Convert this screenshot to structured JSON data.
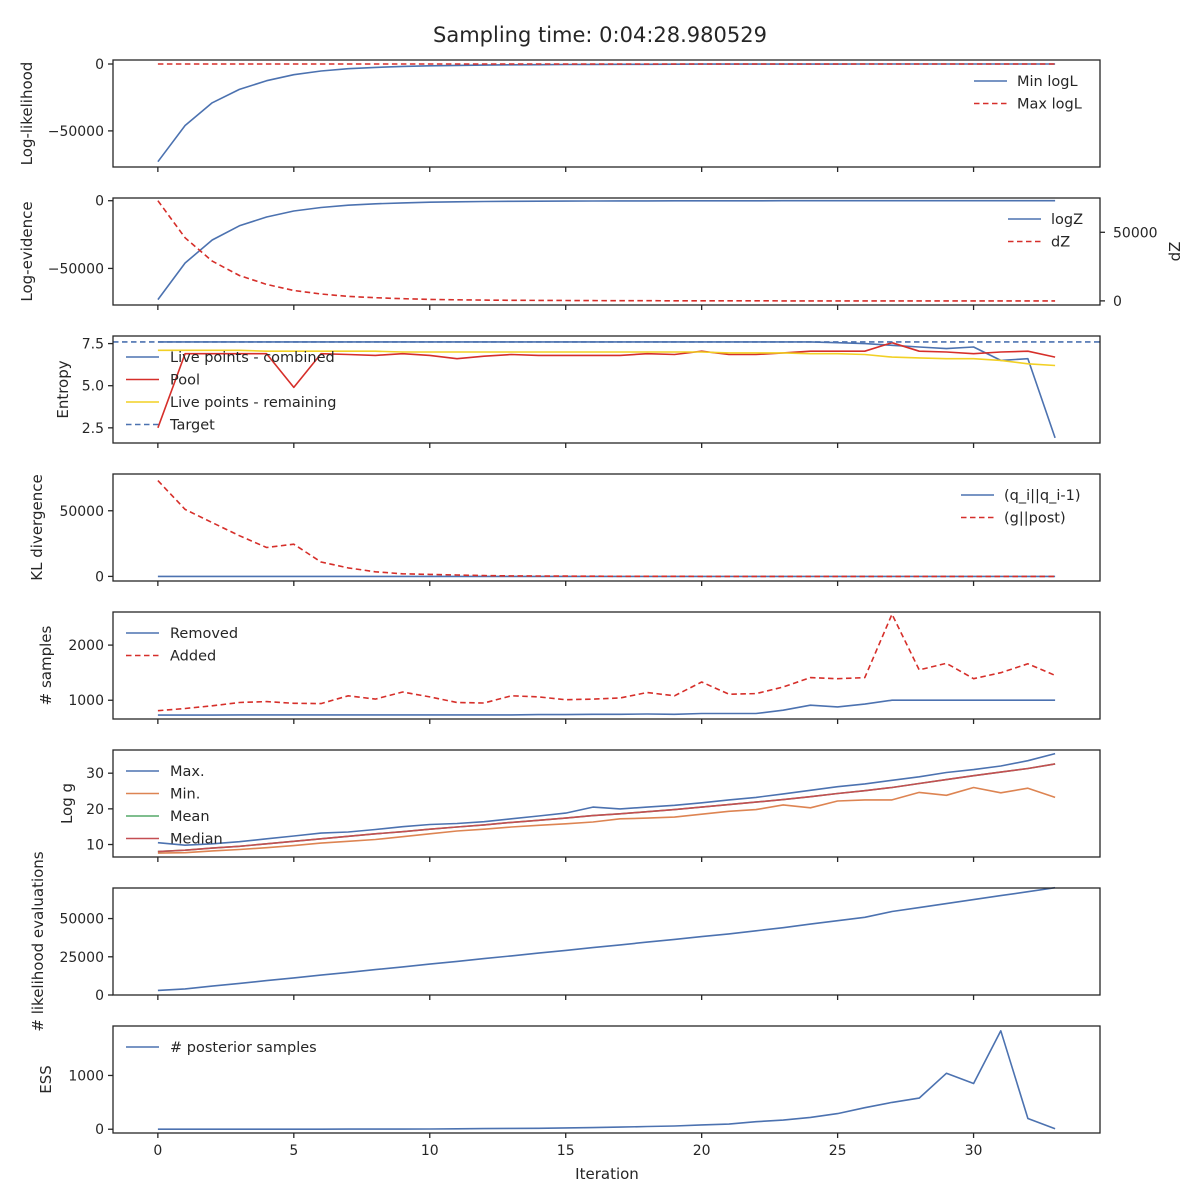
{
  "title": "Sampling time: 0:04:28.980529",
  "xlabel": "Iteration",
  "xticks": [
    0,
    5,
    10,
    15,
    20,
    25,
    30
  ],
  "xlim": [
    -1.65,
    34.65
  ],
  "colors": {
    "blue": "#4c72b0",
    "red": "#d62f2a",
    "orange": "#dd8452",
    "green": "#55a868",
    "brown": "#c44e52",
    "yellow": "#f2d024",
    "text": "#262626"
  },
  "chart_data": [
    {
      "type": "line",
      "ylabel": "Log-likelihood",
      "ylim": [
        -77000,
        3000
      ],
      "yticks": [
        0,
        -50000
      ],
      "yticklabels": [
        "0",
        "−50000"
      ],
      "legend": "top-right",
      "x": [
        0,
        1,
        2,
        3,
        4,
        5,
        6,
        7,
        8,
        9,
        10,
        11,
        12,
        13,
        14,
        15,
        16,
        17,
        18,
        19,
        20,
        21,
        22,
        23,
        24,
        25,
        26,
        27,
        28,
        29,
        30,
        31,
        32,
        33
      ],
      "series": [
        {
          "name": "Min logL",
          "color": "blue",
          "dash": false,
          "values": [
            -73000,
            -46000,
            -29000,
            -19000,
            -12500,
            -8000,
            -5200,
            -3500,
            -2500,
            -1800,
            -1300,
            -1000,
            -800,
            -600,
            -500,
            -400,
            -300,
            -250,
            -200,
            -150,
            -100,
            -80,
            -60,
            -50,
            -40,
            -30,
            -25,
            -20,
            -15,
            -10,
            -8,
            -6,
            -4,
            -3
          ]
        },
        {
          "name": "Max logL",
          "color": "red",
          "dash": true,
          "values": [
            0,
            0,
            0,
            0,
            0,
            0,
            0,
            0,
            0,
            0,
            0,
            0,
            0,
            0,
            0,
            0,
            0,
            0,
            0,
            0,
            0,
            0,
            0,
            0,
            0,
            0,
            0,
            0,
            0,
            0,
            0,
            0,
            0,
            0
          ]
        }
      ]
    },
    {
      "type": "line",
      "ylabel": "Log-evidence",
      "ylabel_right": "dZ",
      "ylim": [
        -77000,
        2000
      ],
      "ylim_right": [
        -3000,
        75000
      ],
      "yticks": [
        0,
        -50000
      ],
      "yticklabels": [
        "0",
        "−50000"
      ],
      "yticks_right": [
        50000,
        0
      ],
      "yticklabels_right": [
        "50000",
        "0"
      ],
      "legend": "top-right",
      "x": [
        0,
        1,
        2,
        3,
        4,
        5,
        6,
        7,
        8,
        9,
        10,
        11,
        12,
        13,
        14,
        15,
        16,
        17,
        18,
        19,
        20,
        21,
        22,
        23,
        24,
        25,
        26,
        27,
        28,
        29,
        30,
        31,
        32,
        33
      ],
      "series": [
        {
          "name": "logZ",
          "color": "blue",
          "dash": false,
          "axis": "left",
          "values": [
            -73000,
            -46000,
            -29000,
            -18500,
            -12000,
            -7600,
            -5000,
            -3300,
            -2300,
            -1600,
            -1100,
            -800,
            -600,
            -450,
            -350,
            -260,
            -200,
            -150,
            -110,
            -80,
            -60,
            -45,
            -35,
            -25,
            -20,
            -15,
            -10,
            -8,
            -6,
            -4,
            -3,
            -2,
            -1,
            -1
          ]
        },
        {
          "name": "dZ",
          "color": "red",
          "dash": true,
          "axis": "right",
          "values": [
            73000,
            46000,
            29000,
            18500,
            12000,
            7600,
            5000,
            3300,
            2300,
            1600,
            1100,
            800,
            600,
            450,
            350,
            260,
            200,
            150,
            110,
            80,
            60,
            45,
            35,
            25,
            20,
            15,
            10,
            8,
            6,
            4,
            3,
            2,
            1,
            1
          ]
        }
      ]
    },
    {
      "type": "line",
      "ylabel": "Entropy",
      "ylim": [
        1.6,
        7.95
      ],
      "yticks": [
        7.5,
        5.0,
        2.5
      ],
      "yticklabels": [
        "7.5",
        "5.0",
        "2.5"
      ],
      "legend": "top-left",
      "x": [
        0,
        1,
        2,
        3,
        4,
        5,
        6,
        7,
        8,
        9,
        10,
        11,
        12,
        13,
        14,
        15,
        16,
        17,
        18,
        19,
        20,
        21,
        22,
        23,
        24,
        25,
        26,
        27,
        28,
        29,
        30,
        31,
        32,
        33
      ],
      "series": [
        {
          "name": "Live points - combined",
          "color": "blue",
          "dash": false,
          "values": [
            7.6,
            7.6,
            7.6,
            7.6,
            7.6,
            7.6,
            7.6,
            7.6,
            7.6,
            7.6,
            7.6,
            7.6,
            7.6,
            7.6,
            7.6,
            7.6,
            7.6,
            7.6,
            7.6,
            7.6,
            7.6,
            7.6,
            7.6,
            7.6,
            7.6,
            7.55,
            7.5,
            7.4,
            7.3,
            7.2,
            7.3,
            6.5,
            6.6,
            1.9
          ]
        },
        {
          "name": "Pool",
          "color": "red",
          "dash": false,
          "values": [
            2.5,
            6.9,
            6.9,
            6.9,
            6.9,
            4.9,
            6.9,
            6.85,
            6.8,
            6.9,
            6.8,
            6.6,
            6.75,
            6.85,
            6.8,
            6.8,
            6.8,
            6.8,
            6.9,
            6.85,
            7.05,
            6.85,
            6.85,
            6.95,
            7.05,
            7.05,
            7.05,
            7.55,
            7.05,
            7.0,
            6.9,
            7.0,
            7.05,
            6.7
          ]
        },
        {
          "name": "Live points - remaining",
          "color": "yellow",
          "dash": false,
          "values": [
            7.1,
            7.1,
            7.1,
            7.1,
            7.05,
            7.05,
            7.05,
            7.05,
            7.05,
            7.0,
            7.0,
            7.0,
            7.0,
            7.0,
            7.0,
            7.0,
            7.0,
            7.0,
            7.0,
            7.0,
            7.0,
            6.95,
            6.95,
            6.95,
            6.9,
            6.9,
            6.85,
            6.7,
            6.65,
            6.6,
            6.6,
            6.5,
            6.3,
            6.2
          ]
        },
        {
          "name": "Target",
          "color": "blue",
          "dash": true,
          "hline": 7.6
        }
      ]
    },
    {
      "type": "line",
      "ylabel": "KL divergence",
      "ylim": [
        -3500,
        78000
      ],
      "yticks": [
        50000,
        0
      ],
      "yticklabels": [
        "50000",
        "0"
      ],
      "legend": "top-right",
      "x": [
        0,
        1,
        2,
        3,
        4,
        5,
        6,
        7,
        8,
        9,
        10,
        11,
        12,
        13,
        14,
        15,
        16,
        17,
        18,
        19,
        20,
        21,
        22,
        23,
        24,
        25,
        26,
        27,
        28,
        29,
        30,
        31,
        32,
        33
      ],
      "series": [
        {
          "name": "(q_i||q_i-1)",
          "color": "blue",
          "dash": false,
          "values": [
            0,
            0,
            0,
            0,
            0,
            0,
            0,
            0,
            0,
            0,
            0,
            0,
            0,
            0,
            0,
            0,
            0,
            0,
            0,
            0,
            0,
            0,
            0,
            0,
            0,
            0,
            0,
            0,
            0,
            0,
            0,
            0,
            0,
            0
          ]
        },
        {
          "name": "(g||post)",
          "color": "red",
          "dash": true,
          "values": [
            73000,
            51000,
            41000,
            31000,
            22000,
            24500,
            11000,
            6500,
            3500,
            2000,
            1500,
            1100,
            600,
            400,
            300,
            200,
            150,
            100,
            80,
            60,
            40,
            30,
            20,
            10,
            5,
            0,
            0,
            0,
            0,
            0,
            0,
            0,
            0,
            0
          ]
        }
      ]
    },
    {
      "type": "line",
      "ylabel": "# samples",
      "ylim": [
        660,
        2600
      ],
      "yticks": [
        2000,
        1000
      ],
      "yticklabels": [
        "2000",
        "1000"
      ],
      "legend": "top-left",
      "x": [
        0,
        1,
        2,
        3,
        4,
        5,
        6,
        7,
        8,
        9,
        10,
        11,
        12,
        13,
        14,
        15,
        16,
        17,
        18,
        19,
        20,
        21,
        22,
        23,
        24,
        25,
        26,
        27,
        28,
        29,
        30,
        31,
        32,
        33
      ],
      "series": [
        {
          "name": "Removed",
          "color": "blue",
          "dash": false,
          "values": [
            730,
            730,
            730,
            735,
            735,
            735,
            735,
            735,
            735,
            735,
            735,
            735,
            735,
            735,
            740,
            740,
            745,
            745,
            750,
            745,
            760,
            760,
            760,
            820,
            910,
            880,
            930,
            1000,
            1000,
            1000,
            1000,
            1000,
            1000,
            1000
          ]
        },
        {
          "name": "Added",
          "color": "red",
          "dash": true,
          "values": [
            810,
            850,
            900,
            960,
            975,
            945,
            940,
            1080,
            1020,
            1150,
            1060,
            960,
            950,
            1080,
            1060,
            1010,
            1020,
            1040,
            1140,
            1080,
            1330,
            1110,
            1120,
            1240,
            1410,
            1390,
            1410,
            2560,
            1550,
            1670,
            1390,
            1500,
            1660,
            1450
          ]
        }
      ]
    },
    {
      "type": "line",
      "ylabel": "Log g",
      "ylim": [
        6.5,
        36.5
      ],
      "yticks": [
        30,
        20,
        10
      ],
      "yticklabels": [
        "30",
        "20",
        "10"
      ],
      "legend": "top-left",
      "x": [
        0,
        1,
        2,
        3,
        4,
        5,
        6,
        7,
        8,
        9,
        10,
        11,
        12,
        13,
        14,
        15,
        16,
        17,
        18,
        19,
        20,
        21,
        22,
        23,
        24,
        25,
        26,
        27,
        28,
        29,
        30,
        31,
        32,
        33
      ],
      "series": [
        {
          "name": "Max.",
          "color": "blue",
          "dash": false,
          "values": [
            10.5,
            9.8,
            10.2,
            10.8,
            11.6,
            12.4,
            13.2,
            13.5,
            14.2,
            15.0,
            15.6,
            15.9,
            16.4,
            17.2,
            18.0,
            18.8,
            20.5,
            20.0,
            20.5,
            21.0,
            21.7,
            22.5,
            23.2,
            24.2,
            25.2,
            26.2,
            27.0,
            28.0,
            29.0,
            30.2,
            31.0,
            32.0,
            33.5,
            35.5
          ]
        },
        {
          "name": "Min.",
          "color": "orange",
          "dash": false,
          "values": [
            7.6,
            7.7,
            8.2,
            8.6,
            9.1,
            9.7,
            10.4,
            10.9,
            11.4,
            12.2,
            13.0,
            13.8,
            14.3,
            14.9,
            15.4,
            15.8,
            16.3,
            17.2,
            17.4,
            17.7,
            18.5,
            19.3,
            19.8,
            21.1,
            20.3,
            22.2,
            22.5,
            22.5,
            24.6,
            23.8,
            26.0,
            24.5,
            25.8,
            23.2
          ]
        },
        {
          "name": "Mean",
          "color": "green",
          "dash": false,
          "values": [
            8.0,
            8.4,
            9.0,
            9.5,
            10.2,
            10.9,
            11.6,
            12.3,
            13.0,
            13.6,
            14.3,
            14.9,
            15.5,
            16.2,
            16.8,
            17.4,
            18.1,
            18.6,
            19.2,
            19.8,
            20.5,
            21.2,
            21.9,
            22.6,
            23.4,
            24.3,
            25.1,
            26.0,
            27.1,
            28.2,
            29.3,
            30.3,
            31.3,
            32.6
          ]
        },
        {
          "name": "Median",
          "color": "brown",
          "dash": false,
          "values": [
            8.0,
            8.4,
            9.0,
            9.5,
            10.2,
            10.9,
            11.6,
            12.3,
            13.0,
            13.6,
            14.3,
            14.9,
            15.5,
            16.2,
            16.8,
            17.4,
            18.1,
            18.6,
            19.2,
            19.8,
            20.5,
            21.2,
            21.9,
            22.6,
            23.4,
            24.3,
            25.1,
            26.0,
            27.1,
            28.2,
            29.3,
            30.3,
            31.3,
            32.6
          ]
        }
      ]
    },
    {
      "type": "line",
      "ylabel": "# likelihood evaluations",
      "ylim": [
        0,
        70000
      ],
      "yticks": [
        50000,
        25000,
        0
      ],
      "yticklabels": [
        "50000",
        "25000",
        "0"
      ],
      "legend": "none",
      "x": [
        0,
        1,
        2,
        3,
        4,
        5,
        6,
        7,
        8,
        9,
        10,
        11,
        12,
        13,
        14,
        15,
        16,
        17,
        18,
        19,
        20,
        21,
        22,
        23,
        24,
        25,
        26,
        27,
        28,
        29,
        30,
        31,
        32,
        33
      ],
      "series": [
        {
          "color": "blue",
          "dash": false,
          "values": [
            3000,
            4000,
            5800,
            7600,
            9400,
            11200,
            13000,
            14800,
            16600,
            18400,
            20200,
            22000,
            23800,
            25600,
            27400,
            29200,
            31000,
            32800,
            34600,
            36400,
            38200,
            40000,
            42000,
            44000,
            46400,
            48600,
            50800,
            54600,
            57200,
            59800,
            62400,
            65000,
            67600,
            70200
          ]
        }
      ]
    },
    {
      "type": "line",
      "ylabel": "ESS",
      "ylim": [
        -70,
        1920
      ],
      "yticks": [
        1000,
        0
      ],
      "yticklabels": [
        "1000",
        "0"
      ],
      "legend": "top-left",
      "x": [
        0,
        1,
        2,
        3,
        4,
        5,
        6,
        7,
        8,
        9,
        10,
        11,
        12,
        13,
        14,
        15,
        16,
        17,
        18,
        19,
        20,
        21,
        22,
        23,
        24,
        25,
        26,
        27,
        28,
        29,
        30,
        31,
        32,
        33
      ],
      "series": [
        {
          "name": "# posterior samples",
          "color": "blue",
          "dash": false,
          "values": [
            0,
            0,
            0,
            0,
            0,
            0,
            0,
            2,
            2,
            3,
            5,
            8,
            12,
            15,
            18,
            25,
            30,
            40,
            50,
            60,
            80,
            95,
            140,
            170,
            220,
            290,
            400,
            500,
            580,
            1040,
            850,
            1830,
            200,
            10
          ]
        }
      ]
    }
  ]
}
